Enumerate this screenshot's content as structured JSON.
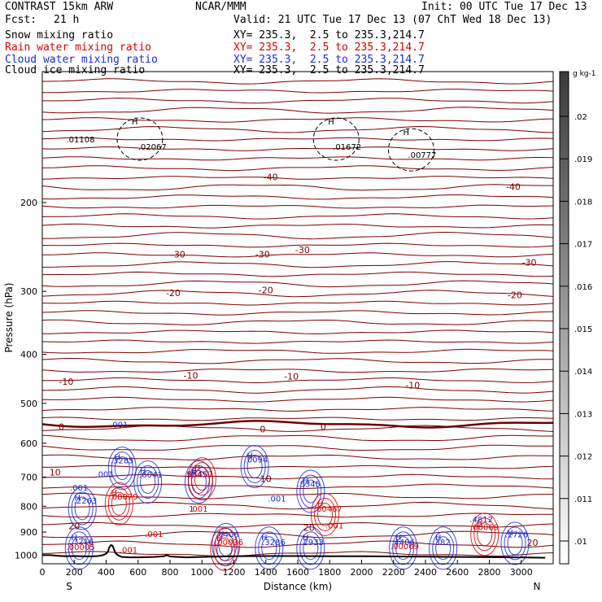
{
  "header": {
    "model": "CONTRAST 15km ARW",
    "center": "NCAR/MMM",
    "init": "Init: 00 UTC Tue 17 Dec 13",
    "fcst_label": "Fcst:",
    "fcst_value": "21 h",
    "valid": "Valid: 21 UTC Tue 17 Dec 13 (07 ChT Wed 18 Dec 13)"
  },
  "fields": [
    {
      "name": "Snow mixing ratio",
      "xy": "XY= 235.3,  2.5 to 235.3,214.7",
      "color": "#000000"
    },
    {
      "name": "Rain water mixing ratio",
      "xy": "XY= 235.3,  2.5 to 235.3,214.7",
      "color": "#d80000"
    },
    {
      "name": "Cloud water mixing ratio",
      "xy": "XY= 235.3,  2.5 to 235.3,214.7",
      "color": "#1a2bd6"
    },
    {
      "name": "Cloud ice mixing ratio",
      "xy": "XY= 235.3,  2.5 to 235.3,214.7",
      "color": "#000000"
    }
  ],
  "chart_data": {
    "type": "cross-section contour",
    "xlabel": "Distance (km)",
    "ylabel": "Pressure (hPa)",
    "x_ticks": [
      0,
      200,
      400,
      600,
      800,
      1000,
      1200,
      1400,
      1600,
      1800,
      2000,
      2200,
      2400,
      2600,
      2800,
      3000
    ],
    "y_ticks": [
      200,
      300,
      400,
      500,
      600,
      700,
      800,
      900,
      1000
    ],
    "xlim": [
      0,
      3200
    ],
    "ylim": [
      1040,
      110
    ],
    "y_scale": "log",
    "x_ends": {
      "left": "S",
      "right": "N"
    },
    "colorbar": {
      "unit": "g kg-1",
      "ticks": [
        ".02",
        ".019",
        ".018",
        ".017",
        ".016",
        ".015",
        ".014",
        ".013",
        ".012",
        ".011",
        ".01"
      ],
      "gradient": [
        "#ffffff",
        "#3a3a3a"
      ]
    },
    "temperature_contours": {
      "color": "#7a0000",
      "zero_isotherm_color": "#6b0000",
      "levels": [
        {
          "label": "-40",
          "pressure": 190
        },
        {
          "label": "-30",
          "pressure": 275
        },
        {
          "label": "-20",
          "pressure": 345
        },
        {
          "label": "-10",
          "pressure": 430
        },
        {
          "label": "0",
          "pressure": 550
        },
        {
          "label": "10",
          "pressure": 730
        },
        {
          "label": "20",
          "pressure": 860
        }
      ],
      "labels": [
        {
          "text": "-40",
          "x": 1430,
          "p": 178
        },
        {
          "text": "-40",
          "x": 2950,
          "p": 186
        },
        {
          "text": "-30",
          "x": 850,
          "p": 253
        },
        {
          "text": "-30",
          "x": 1380,
          "p": 253
        },
        {
          "text": "-30",
          "x": 1630,
          "p": 248
        },
        {
          "text": "-30",
          "x": 3050,
          "p": 263
        },
        {
          "text": "-20",
          "x": 820,
          "p": 302
        },
        {
          "text": "-20",
          "x": 1400,
          "p": 298
        },
        {
          "text": "-20",
          "x": 2960,
          "p": 305
        },
        {
          "text": "-10",
          "x": 150,
          "p": 453
        },
        {
          "text": "-10",
          "x": 930,
          "p": 440
        },
        {
          "text": "-10",
          "x": 1560,
          "p": 442
        },
        {
          "text": "-10",
          "x": 2320,
          "p": 460
        },
        {
          "text": "0",
          "x": 120,
          "p": 556
        },
        {
          "text": "0",
          "x": 1380,
          "p": 563
        },
        {
          "text": "0",
          "x": 1760,
          "p": 556
        },
        {
          "text": "10",
          "x": 80,
          "p": 685
        },
        {
          "text": "10",
          "x": 1400,
          "p": 705
        },
        {
          "text": "20",
          "x": 200,
          "p": 875
        },
        {
          "text": "20",
          "x": 1670,
          "p": 882
        },
        {
          "text": "20",
          "x": 3070,
          "p": 944
        }
      ]
    },
    "top_annotations": [
      {
        "text": ".01108",
        "x": 150,
        "p": 152,
        "color": "#000000"
      },
      {
        "text": "H",
        "x": 560,
        "p": 140,
        "color": "#000000"
      },
      {
        "text": ".02067",
        "x": 600,
        "p": 157,
        "color": "#000000"
      },
      {
        "text": "H",
        "x": 1790,
        "p": 140,
        "color": "#000000"
      },
      {
        "text": ".01672",
        "x": 1820,
        "p": 157,
        "color": "#000000"
      },
      {
        "text": "H",
        "x": 2260,
        "p": 147,
        "color": "#000000"
      },
      {
        "text": ".00777",
        "x": 2290,
        "p": 163,
        "color": "#000000"
      }
    ],
    "annotations": [
      {
        "text": ".001",
        "x": 480,
        "p": 558,
        "color": "#1a2bd6"
      },
      {
        "text": "H",
        "x": 470,
        "p": 648,
        "color": "#1a2bd6"
      },
      {
        "text": ".3285",
        "x": 500,
        "p": 658,
        "color": "#1a2bd6"
      },
      {
        "text": "H",
        "x": 630,
        "p": 690,
        "color": "#1a2bd6"
      },
      {
        "text": ".6041",
        "x": 680,
        "p": 702,
        "color": "#1a2bd6"
      },
      {
        "text": ".001",
        "x": 390,
        "p": 700,
        "color": "#1a2bd6"
      },
      {
        "text": ".001",
        "x": 230,
        "p": 745,
        "color": "#1a2bd6"
      },
      {
        "text": "H",
        "x": 220,
        "p": 778,
        "color": "#1a2bd6"
      },
      {
        "text": ".2263",
        "x": 270,
        "p": 790,
        "color": "#1a2bd6"
      },
      {
        "text": "H",
        "x": 450,
        "p": 762,
        "color": "#d80000"
      },
      {
        "text": ".08879",
        "x": 510,
        "p": 775,
        "color": "#d80000"
      },
      {
        "text": "H",
        "x": 950,
        "p": 690,
        "color": "#1a2bd6"
      },
      {
        "text": ".5845",
        "x": 960,
        "p": 700,
        "color": "#1a2bd6"
      },
      {
        "text": "H",
        "x": 970,
        "p": 680,
        "color": "#d80000"
      },
      {
        "text": ".05457",
        "x": 980,
        "p": 700,
        "color": "#d80000"
      },
      {
        "text": "1",
        "x": 935,
        "p": 820,
        "color": "#1a2bd6"
      },
      {
        "text": ".001",
        "x": 980,
        "p": 820,
        "color": "#d80000"
      },
      {
        "text": "H",
        "x": 1300,
        "p": 643,
        "color": "#1a2bd6"
      },
      {
        "text": ".0094",
        "x": 1340,
        "p": 655,
        "color": "#1a2bd6"
      },
      {
        "text": "H",
        "x": 1650,
        "p": 720,
        "color": "#1a2bd6"
      },
      {
        "text": ".5345",
        "x": 1670,
        "p": 732,
        "color": "#1a2bd6"
      },
      {
        "text": ".001",
        "x": 1470,
        "p": 783,
        "color": "#1a2bd6"
      },
      {
        "text": "H",
        "x": 1740,
        "p": 800,
        "color": "#d80000"
      },
      {
        "text": ".00467",
        "x": 1790,
        "p": 820,
        "color": "#d80000"
      },
      {
        "text": ".001",
        "x": 1830,
        "p": 885,
        "color": "#d80000"
      },
      {
        "text": ".001",
        "x": 700,
        "p": 920,
        "color": "#d80000"
      },
      {
        "text": ".001",
        "x": 540,
        "p": 990,
        "color": "#d80000"
      },
      {
        "text": "H",
        "x": 200,
        "p": 933,
        "color": "#1a2bd6"
      },
      {
        "text": ".3216",
        "x": 250,
        "p": 951,
        "color": "#1a2bd6"
      },
      {
        "text": ".00005",
        "x": 240,
        "p": 977,
        "color": "#d80000"
      },
      {
        "text": "H",
        "x": 1120,
        "p": 918,
        "color": "#1a2bd6"
      },
      {
        "text": ".406",
        "x": 1175,
        "p": 922,
        "color": "#1a2bd6"
      },
      {
        "text": "H",
        "x": 1110,
        "p": 938,
        "color": "#d80000"
      },
      {
        "text": ".00036",
        "x": 1170,
        "p": 955,
        "color": "#d80000"
      },
      {
        "text": "H",
        "x": 1390,
        "p": 933,
        "color": "#1a2bd6"
      },
      {
        "text": ".3286",
        "x": 1450,
        "p": 955,
        "color": "#1a2bd6"
      },
      {
        "text": "H",
        "x": 1650,
        "p": 933,
        "color": "#1a2bd6"
      },
      {
        "text": ".2933",
        "x": 1690,
        "p": 955,
        "color": "#1a2bd6"
      },
      {
        "text": "H",
        "x": 2230,
        "p": 933,
        "color": "#1a2bd6"
      },
      {
        "text": ".4406",
        "x": 2260,
        "p": 955,
        "color": "#1a2bd6"
      },
      {
        "text": ".00069",
        "x": 2270,
        "p": 972,
        "color": "#d80000"
      },
      {
        "text": "H",
        "x": 2480,
        "p": 933,
        "color": "#1a2bd6"
      },
      {
        "text": ".382",
        "x": 2500,
        "p": 955,
        "color": "#1a2bd6"
      },
      {
        "text": ".4812",
        "x": 2750,
        "p": 860,
        "color": "#1a2bd6"
      },
      {
        "text": "H",
        "x": 2740,
        "p": 876,
        "color": "#d80000"
      },
      {
        "text": ".00069",
        "x": 2770,
        "p": 892,
        "color": "#d80000"
      },
      {
        "text": "H",
        "x": 2930,
        "p": 913,
        "color": "#1a2bd6"
      },
      {
        "text": ".1726",
        "x": 2970,
        "p": 922,
        "color": "#1a2bd6"
      }
    ],
    "terrain": {
      "color": "#000000",
      "x": [
        0,
        50,
        100,
        150,
        200,
        250,
        300,
        350,
        380,
        400,
        410,
        420,
        430,
        440,
        450,
        460,
        480,
        500,
        550,
        600,
        700,
        760,
        780,
        800,
        900,
        1000,
        1200,
        1400,
        1600,
        1800,
        2000,
        2200,
        2400,
        2600,
        2800,
        3000,
        3150
      ],
      "p": [
        1000,
        1000,
        1003,
        1005,
        1004,
        1005,
        1006,
        1004,
        1000,
        993,
        985,
        965,
        955,
        958,
        975,
        992,
        1003,
        1008,
        1010,
        1010,
        1008,
        1005,
        1000,
        1006,
        1010,
        1008,
        1005,
        1004,
        1004,
        1005,
        1005,
        1006,
        1007,
        1008,
        1009,
        1010,
        1012
      ]
    }
  }
}
